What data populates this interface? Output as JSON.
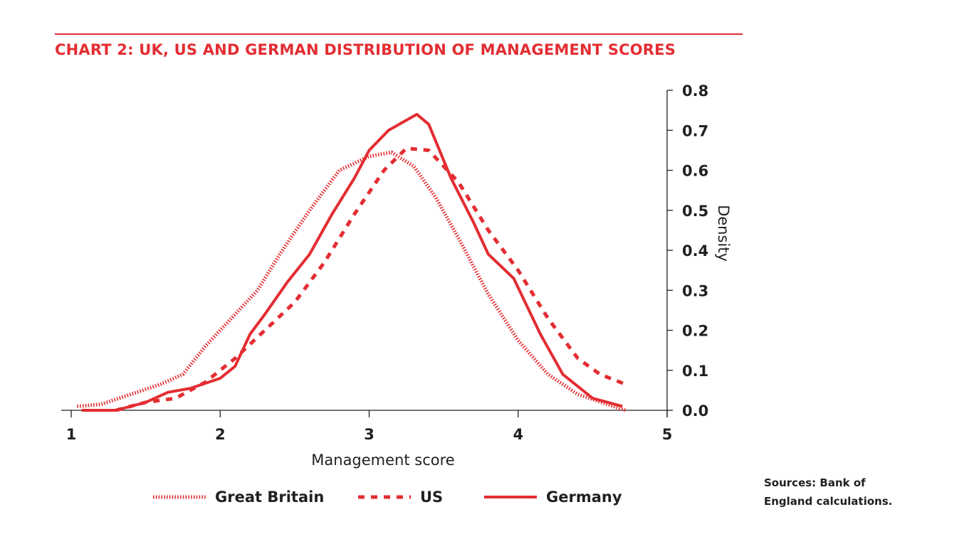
{
  "header": {
    "title": "CHART 2: UK, US AND GERMAN DISTRIBUTION OF MANAGEMENT SCORES"
  },
  "footer": {
    "source_line1": "Sources: Bank of",
    "source_line2": "England calculations."
  },
  "colors": {
    "accent": "#e32d32",
    "text": "#231f20"
  },
  "chart_data": {
    "type": "line",
    "title": "CHART 2: UK, US AND GERMAN DISTRIBUTION OF MANAGEMENT SCORES",
    "xlabel": "Management score",
    "ylabel": "Density",
    "xlim": [
      1,
      5
    ],
    "ylim": [
      0,
      0.8
    ],
    "x_ticks": [
      1,
      2,
      3,
      4,
      5
    ],
    "x_tick_labels": [
      "1",
      "2",
      "3",
      "4",
      "5"
    ],
    "y_ticks": [
      0,
      0.1,
      0.2,
      0.3,
      0.4,
      0.5,
      0.6,
      0.7,
      0.8
    ],
    "y_tick_labels": [
      "0.0",
      "0.1",
      "0.2",
      "0.3",
      "0.4",
      "0.5",
      "0.6",
      "0.7",
      "0.8"
    ],
    "y_axis_side": "right",
    "grid": false,
    "legend_position": "bottom",
    "series": [
      {
        "name": "Great Britain",
        "style": "dotted",
        "x": [
          1.04,
          1.2,
          1.4,
          1.6,
          1.75,
          1.9,
          2.1,
          2.25,
          2.4,
          2.6,
          2.8,
          3.0,
          3.15,
          3.3,
          3.45,
          3.6,
          3.8,
          4.0,
          4.2,
          4.4,
          4.6,
          4.72
        ],
        "y": [
          0.01,
          0.015,
          0.04,
          0.065,
          0.09,
          0.16,
          0.24,
          0.3,
          0.39,
          0.5,
          0.6,
          0.635,
          0.645,
          0.61,
          0.53,
          0.43,
          0.29,
          0.175,
          0.09,
          0.04,
          0.015,
          0.0
        ]
      },
      {
        "name": "US",
        "style": "dashed",
        "x": [
          1.3,
          1.5,
          1.7,
          1.9,
          2.1,
          2.3,
          2.5,
          2.7,
          2.9,
          3.1,
          3.25,
          3.4,
          3.6,
          3.8,
          4.0,
          4.2,
          4.4,
          4.55,
          4.72
        ],
        "y": [
          0.0,
          0.02,
          0.03,
          0.07,
          0.13,
          0.2,
          0.27,
          0.37,
          0.49,
          0.6,
          0.655,
          0.65,
          0.57,
          0.45,
          0.35,
          0.23,
          0.13,
          0.09,
          0.065
        ]
      },
      {
        "name": "Germany",
        "style": "solid",
        "x": [
          1.07,
          1.3,
          1.5,
          1.65,
          1.8,
          2.0,
          2.1,
          2.2,
          2.3,
          2.45,
          2.6,
          2.75,
          2.9,
          3.0,
          3.13,
          3.32,
          3.4,
          3.55,
          3.7,
          3.8,
          3.97,
          4.15,
          4.3,
          4.5,
          4.7
        ],
        "y": [
          0.0,
          0.0,
          0.02,
          0.045,
          0.055,
          0.08,
          0.11,
          0.19,
          0.24,
          0.32,
          0.39,
          0.49,
          0.58,
          0.65,
          0.7,
          0.74,
          0.715,
          0.58,
          0.47,
          0.39,
          0.33,
          0.19,
          0.09,
          0.03,
          0.01
        ]
      }
    ]
  }
}
